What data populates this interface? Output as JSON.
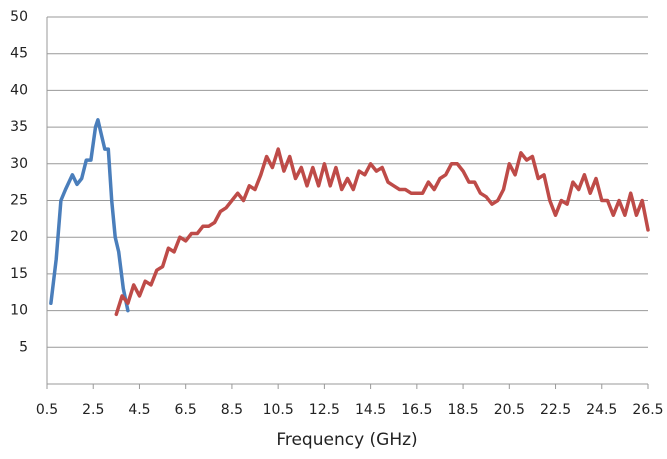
{
  "chart_data": {
    "type": "line",
    "x_label": "Frequency (GHz)",
    "series": [
      {
        "color": "#4a7ebb",
        "x": [
          0.67,
          0.9,
          1.1,
          1.3,
          1.6,
          1.8,
          2.0,
          2.2,
          2.4,
          2.6,
          2.7,
          2.85,
          3.0,
          3.15,
          3.3,
          3.45,
          3.6,
          3.8,
          4.0
        ],
        "values": [
          11,
          17,
          25,
          26.5,
          28.5,
          27.2,
          28,
          30.5,
          30.5,
          35,
          36,
          34,
          32,
          32,
          25,
          20,
          18,
          13,
          10
        ]
      },
      {
        "color": "#be4b48",
        "x": [
          3.5,
          3.75,
          4.0,
          4.25,
          4.5,
          4.75,
          5.0,
          5.25,
          5.5,
          5.75,
          6.0,
          6.25,
          6.5,
          6.75,
          7.0,
          7.25,
          7.5,
          7.75,
          8.0,
          8.25,
          8.5,
          8.75,
          9.0,
          9.25,
          9.5,
          9.75,
          10.0,
          10.25,
          10.5,
          10.75,
          11.0,
          11.25,
          11.5,
          11.75,
          12.0,
          12.25,
          12.5,
          12.75,
          13.0,
          13.25,
          13.5,
          13.75,
          14.0,
          14.25,
          14.5,
          14.75,
          15.0,
          15.25,
          15.5,
          15.75,
          16.0,
          16.25,
          16.5,
          16.75,
          17.0,
          17.25,
          17.5,
          17.75,
          18.0,
          18.25,
          18.5,
          18.75,
          19.0,
          19.25,
          19.5,
          19.75,
          20.0,
          20.25,
          20.5,
          20.75,
          21.0,
          21.25,
          21.5,
          21.75,
          22.0,
          22.25,
          22.5,
          22.75,
          23.0,
          23.25,
          23.5,
          23.75,
          24.0,
          24.25,
          24.5,
          24.75,
          25.0,
          25.25,
          25.5,
          25.75,
          26.0,
          26.25,
          26.5
        ],
        "values": [
          9.5,
          12,
          11,
          13.5,
          12,
          14,
          13.5,
          15.5,
          16,
          18.5,
          18,
          20,
          19.5,
          20.5,
          20.5,
          21.5,
          21.5,
          22,
          23.5,
          24,
          25,
          26,
          25,
          27,
          26.5,
          28.5,
          31,
          29.5,
          32,
          29,
          31,
          28,
          29.5,
          27,
          29.5,
          27,
          30,
          27,
          29.5,
          26.5,
          28,
          26.5,
          29,
          28.5,
          30,
          29,
          29.5,
          27.5,
          27,
          26.5,
          26.5,
          26,
          26,
          26,
          27.5,
          26.5,
          28,
          28.5,
          30,
          30,
          29,
          27.5,
          27.5,
          26,
          25.5,
          24.5,
          25,
          26.5,
          30,
          28.5,
          31.5,
          30.5,
          31,
          28,
          28.5,
          25,
          23,
          25,
          24.5,
          27.5,
          26.5,
          28.5,
          26,
          28,
          25,
          25,
          23,
          25,
          23,
          26,
          23,
          25,
          21
        ]
      }
    ],
    "xlim": [
      0.5,
      26.5
    ],
    "xticks": [
      0.5,
      2.5,
      4.5,
      6.5,
      8.5,
      10.5,
      12.5,
      14.5,
      16.5,
      18.5,
      20.5,
      22.5,
      24.5,
      26.5
    ],
    "ylim": [
      0,
      50
    ],
    "yticks": [
      5,
      10,
      15,
      20,
      25,
      30,
      35,
      40,
      45,
      50
    ],
    "grid": true
  }
}
